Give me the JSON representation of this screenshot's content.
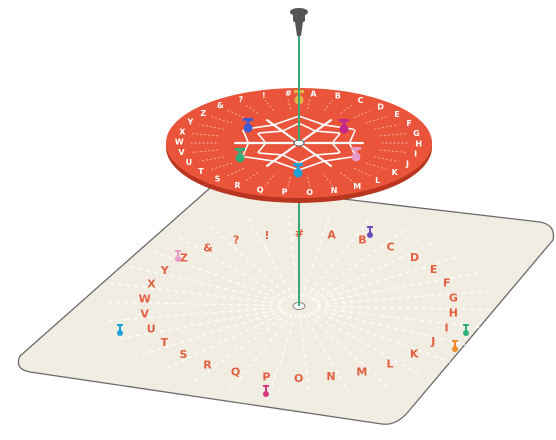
{
  "alphabet": [
    "A",
    "B",
    "C",
    "D",
    "E",
    "F",
    "G",
    "H",
    "I",
    "J",
    "K",
    "L",
    "M",
    "N",
    "O",
    "P",
    "Q",
    "R",
    "S",
    "T",
    "U",
    "V",
    "W",
    "X",
    "Y",
    "Z",
    "&",
    "?",
    "!",
    "#"
  ],
  "colors": {
    "disc_red": "#e9543b",
    "disc_edge": "#b8351f",
    "disc_letters": "#ffffff",
    "board_fill": "#f2ede3",
    "board_stroke": "#6b6b6b",
    "board_letters": "#e0603f",
    "pin_rod": "#3aa876",
    "pin_head": "#555555",
    "board_dashes": "#ffffff"
  },
  "icons": {
    "pin": "push-pin-icon",
    "marker_purple": "marker-purple-icon",
    "marker_pink": "marker-pink-icon",
    "marker_green": "marker-green-icon",
    "marker_blue": "marker-blue-icon",
    "marker_magenta": "marker-magenta-icon",
    "marker_orange": "marker-orange-icon"
  }
}
